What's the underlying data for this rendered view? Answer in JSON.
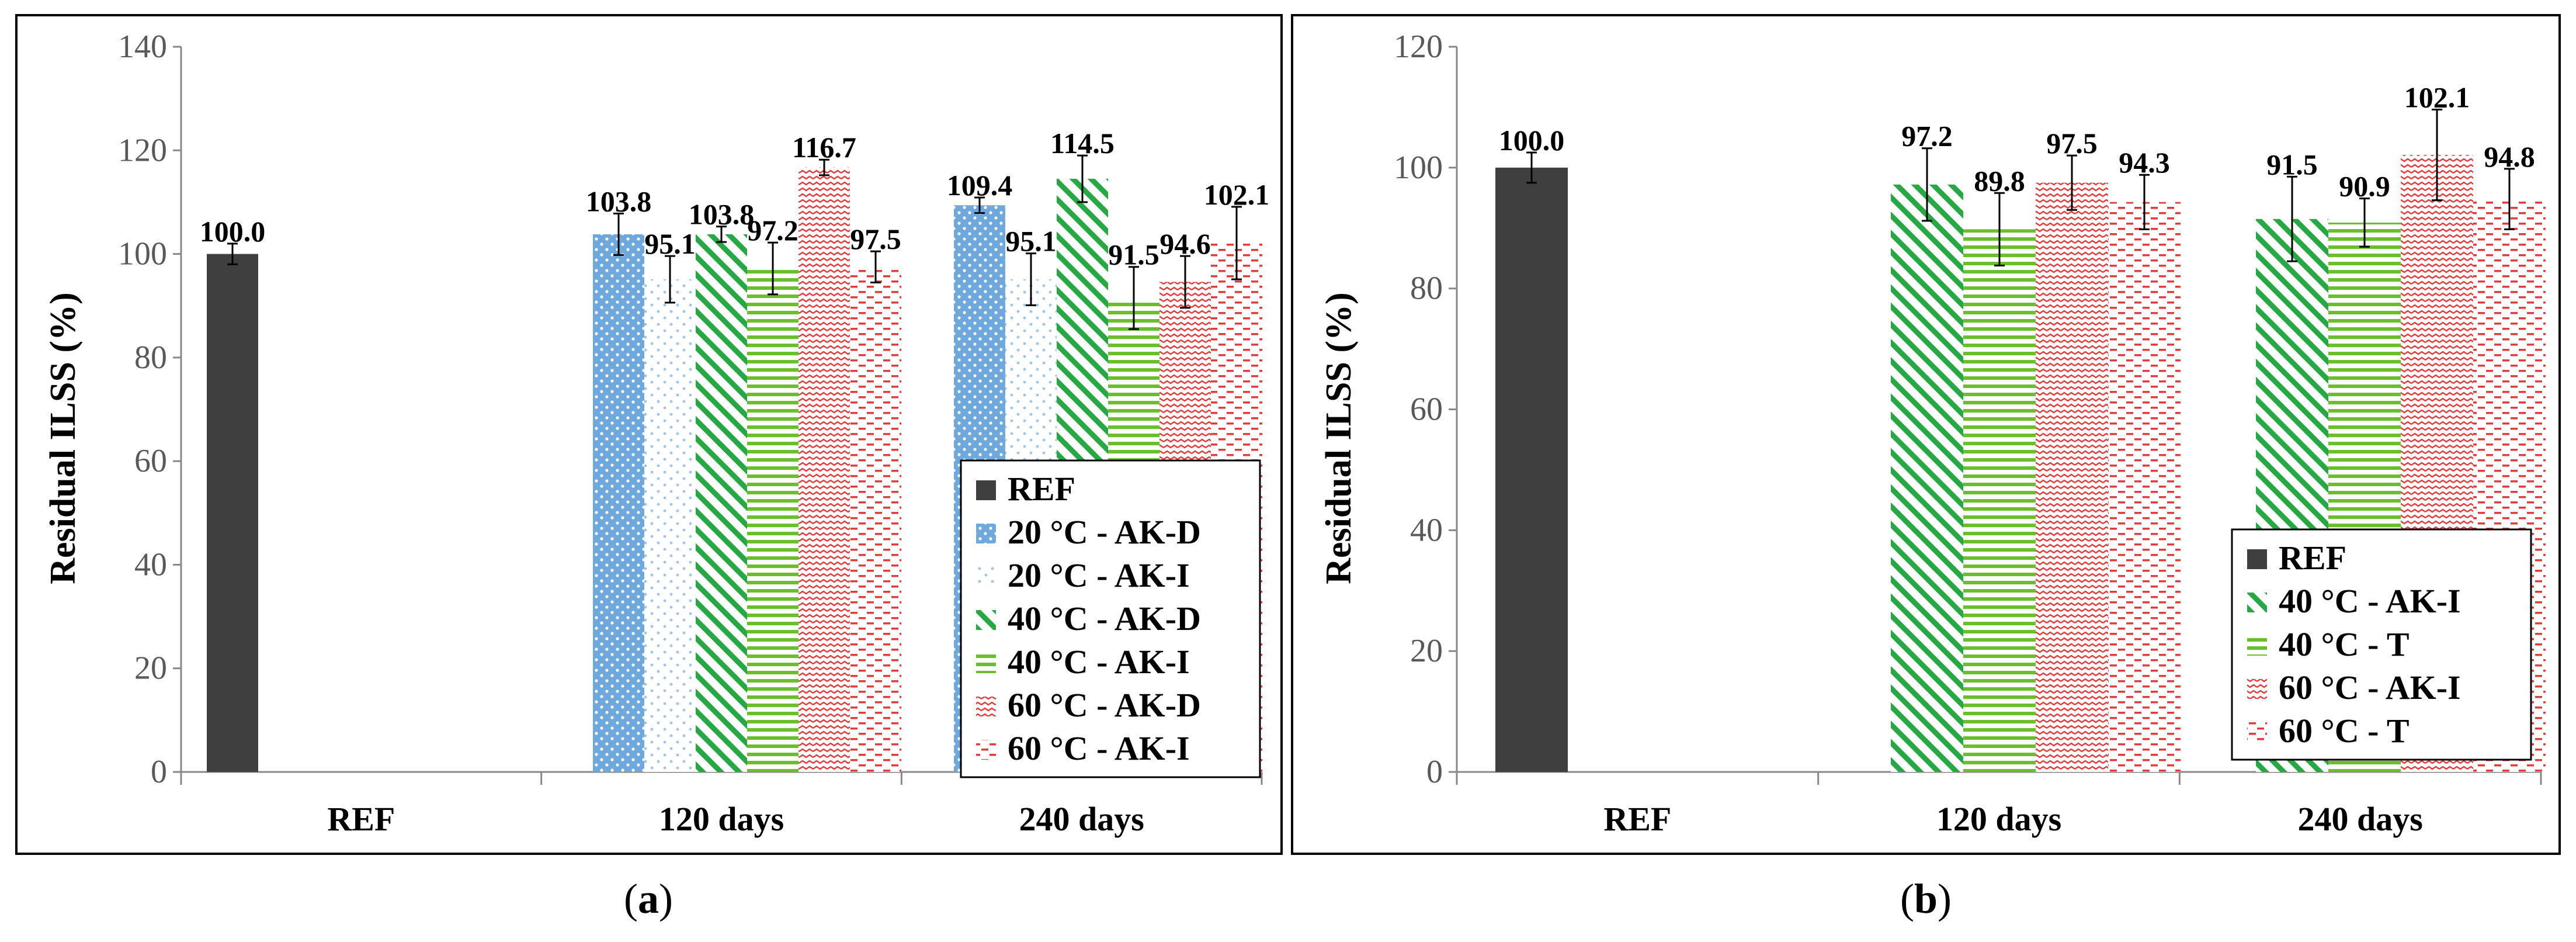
{
  "captions": [
    "a",
    "b"
  ],
  "colors": {
    "ref": "#3f3f3f",
    "blue": "#6fa8dc",
    "green": "#27a844",
    "red": "#e03c3c",
    "axis": "#888888"
  },
  "chart_data": [
    {
      "type": "bar",
      "panel": "a",
      "ylabel": "Residual ILSS (%)",
      "xlabel": "",
      "ylim": [
        0,
        140
      ],
      "yticks": [
        "0",
        "20",
        "40",
        "60",
        "80",
        "100",
        "120",
        "140"
      ],
      "categories": [
        "REF",
        "120 days",
        "240 days"
      ],
      "legend_position": "bottom-right",
      "series": [
        {
          "name": "REF",
          "pattern": "solid-ref",
          "values": [
            100.0,
            null,
            null
          ],
          "labels": [
            "100.0",
            null,
            null
          ],
          "errors": [
            2.0,
            null,
            null
          ]
        },
        {
          "name": "20 °C - AK-D",
          "pattern": "dots-blue",
          "values": [
            null,
            103.8,
            109.4
          ],
          "labels": [
            null,
            "103.8",
            "109.4"
          ],
          "errors": [
            null,
            4.0,
            1.5
          ]
        },
        {
          "name": "20 °C - AK-I",
          "pattern": "sparse-blue",
          "values": [
            null,
            95.1,
            95.1
          ],
          "labels": [
            null,
            "95.1",
            "95.1"
          ],
          "errors": [
            null,
            4.5,
            5.0
          ]
        },
        {
          "name": "40 °C - AK-D",
          "pattern": "diag-green",
          "values": [
            null,
            103.8,
            114.5
          ],
          "labels": [
            null,
            "103.8",
            "114.5"
          ],
          "errors": [
            null,
            1.5,
            4.5
          ]
        },
        {
          "name": "40 °C - AK-I",
          "pattern": "horiz-green",
          "values": [
            null,
            97.2,
            91.5
          ],
          "labels": [
            null,
            "97.2",
            "91.5"
          ],
          "errors": [
            null,
            5.0,
            6.0
          ]
        },
        {
          "name": "60 °C - AK-D",
          "pattern": "zigzag-red",
          "values": [
            null,
            116.7,
            94.6
          ],
          "labels": [
            null,
            "116.7",
            "94.6"
          ],
          "errors": [
            null,
            1.5,
            5.0
          ]
        },
        {
          "name": "60 °C - AK-I",
          "pattern": "dash-red",
          "values": [
            null,
            97.5,
            102.1
          ],
          "labels": [
            null,
            "97.5",
            "102.1"
          ],
          "errors": [
            null,
            3.0,
            7.0
          ]
        }
      ]
    },
    {
      "type": "bar",
      "panel": "b",
      "ylabel": "Residual ILSS (%)",
      "xlabel": "",
      "ylim": [
        0,
        120
      ],
      "yticks": [
        "0",
        "20",
        "40",
        "60",
        "80",
        "100",
        "120"
      ],
      "categories": [
        "REF",
        "120 days",
        "240 days"
      ],
      "legend_position": "bottom-right",
      "series": [
        {
          "name": "REF",
          "pattern": "solid-ref",
          "values": [
            100.0,
            null,
            null
          ],
          "labels": [
            "100.0",
            null,
            null
          ],
          "errors": [
            2.5,
            null,
            null
          ]
        },
        {
          "name": "40 °C - AK-I",
          "pattern": "diag-green",
          "values": [
            null,
            97.2,
            91.5
          ],
          "labels": [
            null,
            "97.2",
            "91.5"
          ],
          "errors": [
            null,
            6.0,
            7.0
          ]
        },
        {
          "name": "40 °C - T",
          "pattern": "horiz-green",
          "values": [
            null,
            89.8,
            90.9
          ],
          "labels": [
            null,
            "89.8",
            "90.9"
          ],
          "errors": [
            null,
            6.0,
            4.0
          ]
        },
        {
          "name": "60 °C - AK-I",
          "pattern": "zigzag-red",
          "values": [
            null,
            97.5,
            102.1
          ],
          "labels": [
            null,
            "97.5",
            "102.1"
          ],
          "errors": [
            null,
            4.5,
            7.5
          ]
        },
        {
          "name": "60 °C - T",
          "pattern": "dash-red",
          "values": [
            null,
            94.3,
            94.8
          ],
          "labels": [
            null,
            "94.3",
            "94.8"
          ],
          "errors": [
            null,
            4.5,
            5.0
          ]
        }
      ]
    }
  ]
}
